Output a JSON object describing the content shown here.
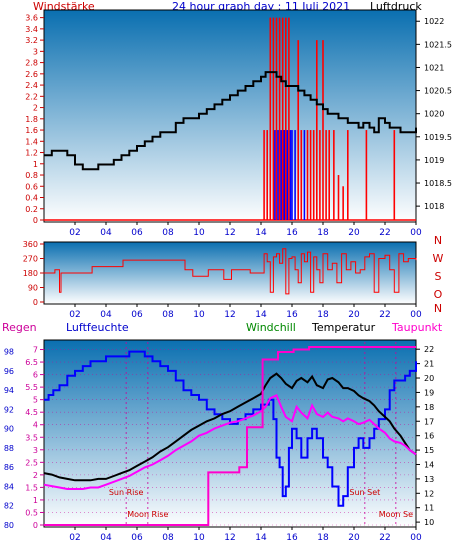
{
  "chart_data": [
    {
      "type": "line",
      "title": "24 hour graph day : 11 Juli 2021",
      "left_label": "Windstärke",
      "right_label": "Luftdruck",
      "x_ticks": [
        "02",
        "04",
        "06",
        "08",
        "10",
        "12",
        "14",
        "16",
        "18",
        "20",
        "22",
        "00"
      ],
      "y_left_ticks": [
        "3.6",
        "3.4",
        "3.2",
        "3",
        "2.8",
        "2.6",
        "2.4",
        "2.2",
        "2",
        "1.8",
        "1.6",
        "1.4",
        "1.2",
        "1",
        "0.8",
        "0.6",
        "0.4",
        "0.2",
        "0"
      ],
      "y_right_ticks": [
        "1022",
        "1021.5",
        "1021",
        "1020.5",
        "1020",
        "1019.5",
        "1019",
        "1018.5",
        "1018"
      ],
      "ylim_left": [
        0,
        3.7
      ],
      "ylim_right": [
        1017.7,
        1022.2
      ],
      "xlim": [
        0,
        24
      ],
      "series": [
        {
          "name": "Luftdruck",
          "color": "#000000",
          "axis": "right",
          "x": [
            0,
            0.5,
            1,
            1.5,
            2,
            2.5,
            3,
            3.5,
            4,
            4.5,
            5,
            5.5,
            6,
            6.5,
            7,
            7.5,
            8,
            8.5,
            9,
            9.5,
            10,
            10.5,
            11,
            11.5,
            12,
            12.5,
            13,
            13.5,
            14,
            14.3,
            14.6,
            15,
            15.3,
            15.6,
            16,
            16.4,
            16.8,
            17.2,
            17.6,
            18,
            18.3,
            18.6,
            19,
            19.3,
            19.6,
            20,
            20.3,
            20.6,
            21,
            21.3,
            21.6,
            22,
            22.3,
            22.6,
            23,
            23.3,
            23.6,
            24
          ],
          "values": [
            1019.1,
            1019.2,
            1019.2,
            1019.1,
            1018.9,
            1018.8,
            1018.8,
            1018.9,
            1018.9,
            1019.0,
            1019.1,
            1019.2,
            1019.3,
            1019.4,
            1019.5,
            1019.6,
            1019.6,
            1019.8,
            1019.9,
            1019.9,
            1020.0,
            1020.1,
            1020.2,
            1020.3,
            1020.4,
            1020.5,
            1020.6,
            1020.7,
            1020.8,
            1020.9,
            1020.9,
            1020.8,
            1020.7,
            1020.6,
            1020.6,
            1020.5,
            1020.4,
            1020.3,
            1020.2,
            1020.1,
            1020.0,
            1020.0,
            1019.9,
            1019.9,
            1019.8,
            1019.8,
            1019.7,
            1019.8,
            1019.7,
            1019.6,
            1019.9,
            1019.8,
            1019.7,
            1019.7,
            1019.6,
            1019.6,
            1019.6,
            1019.7
          ]
        }
      ],
      "wind_bars": [
        {
          "x": 14.2,
          "v": 1.6,
          "color": "#ff0000"
        },
        {
          "x": 14.4,
          "v": 1.6,
          "color": "#ff0000"
        },
        {
          "x": 14.6,
          "v": 3.6,
          "color": "#ff0000"
        },
        {
          "x": 14.8,
          "v": 3.6,
          "color": "#ff0000"
        },
        {
          "x": 14.9,
          "v": 1.6,
          "color": "#0000ff"
        },
        {
          "x": 15.0,
          "v": 3.6,
          "color": "#ff0000"
        },
        {
          "x": 15.1,
          "v": 1.6,
          "color": "#0000ff"
        },
        {
          "x": 15.2,
          "v": 3.6,
          "color": "#ff0000"
        },
        {
          "x": 15.3,
          "v": 1.6,
          "color": "#0000ff"
        },
        {
          "x": 15.4,
          "v": 3.6,
          "color": "#ff0000"
        },
        {
          "x": 15.5,
          "v": 1.6,
          "color": "#0000ff"
        },
        {
          "x": 15.6,
          "v": 3.6,
          "color": "#ff0000"
        },
        {
          "x": 15.7,
          "v": 1.6,
          "color": "#0000ff"
        },
        {
          "x": 15.8,
          "v": 3.6,
          "color": "#ff0000"
        },
        {
          "x": 15.9,
          "v": 1.6,
          "color": "#0000ff"
        },
        {
          "x": 16.0,
          "v": 1.6,
          "color": "#0000ff"
        },
        {
          "x": 16.2,
          "v": 1.6,
          "color": "#0000ff"
        },
        {
          "x": 16.4,
          "v": 3.2,
          "color": "#ff0000"
        },
        {
          "x": 16.6,
          "v": 1.6,
          "color": "#ff0000"
        },
        {
          "x": 16.8,
          "v": 1.6,
          "color": "#0000ff"
        },
        {
          "x": 17.0,
          "v": 1.6,
          "color": "#ff0000"
        },
        {
          "x": 17.2,
          "v": 1.6,
          "color": "#ff0000"
        },
        {
          "x": 17.4,
          "v": 1.6,
          "color": "#ff0000"
        },
        {
          "x": 17.6,
          "v": 3.2,
          "color": "#ff0000"
        },
        {
          "x": 17.8,
          "v": 1.6,
          "color": "#ff0000"
        },
        {
          "x": 18.0,
          "v": 3.2,
          "color": "#ff0000"
        },
        {
          "x": 18.2,
          "v": 1.6,
          "color": "#ff0000"
        },
        {
          "x": 18.4,
          "v": 1.6,
          "color": "#ff0000"
        },
        {
          "x": 18.7,
          "v": 1.6,
          "color": "#ff0000"
        },
        {
          "x": 19.0,
          "v": 0.8,
          "color": "#ff0000"
        },
        {
          "x": 19.3,
          "v": 0.6,
          "color": "#ff0000"
        },
        {
          "x": 19.6,
          "v": 1.6,
          "color": "#ff0000"
        },
        {
          "x": 20.8,
          "v": 1.6,
          "color": "#ff0000"
        },
        {
          "x": 22.6,
          "v": 1.6,
          "color": "#ff0000"
        }
      ]
    },
    {
      "type": "line",
      "title": "",
      "x_ticks": [
        "02",
        "04",
        "06",
        "08",
        "10",
        "12",
        "14",
        "16",
        "18",
        "20",
        "22",
        "00"
      ],
      "y_left_ticks": [
        "360",
        "270",
        "180",
        "90",
        "0"
      ],
      "right_letters": [
        "N",
        "W",
        "S",
        "O",
        "N"
      ],
      "ylim": [
        0,
        360
      ],
      "xlim": [
        0,
        24
      ],
      "series": [
        {
          "name": "Windrichtung",
          "color": "#ff0000",
          "x": [
            0,
            0.6,
            0.7,
            1.0,
            1.1,
            3.0,
            3.1,
            5.0,
            5.1,
            9.0,
            9.1,
            9.5,
            9.6,
            10.5,
            10.6,
            11.5,
            11.6,
            12.0,
            12.1,
            13.2,
            13.3,
            14.0,
            14.2,
            14.4,
            14.6,
            14.8,
            15.0,
            15.2,
            15.4,
            15.6,
            15.8,
            16.0,
            16.2,
            16.4,
            16.6,
            16.8,
            17.0,
            17.2,
            17.4,
            17.6,
            17.8,
            18.0,
            18.3,
            18.6,
            18.9,
            19.2,
            19.5,
            19.8,
            20.1,
            20.4,
            20.7,
            21.0,
            21.3,
            21.6,
            22.0,
            22.3,
            22.6,
            22.9,
            23.2,
            23.5,
            24
          ],
          "values": [
            180,
            180,
            200,
            60,
            180,
            180,
            220,
            220,
            260,
            260,
            200,
            200,
            160,
            160,
            200,
            200,
            140,
            140,
            200,
            200,
            180,
            180,
            300,
            250,
            60,
            280,
            300,
            240,
            330,
            50,
            270,
            280,
            200,
            120,
            300,
            250,
            310,
            60,
            280,
            200,
            120,
            300,
            200,
            240,
            120,
            300,
            200,
            250,
            180,
            200,
            280,
            300,
            60,
            270,
            290,
            200,
            60,
            300,
            250,
            270,
            260
          ]
        }
      ]
    },
    {
      "type": "line",
      "title": "",
      "header_labels": [
        "Regen",
        "Luftfeuchte",
        "Windchill",
        "Temperatur",
        "Taupunkt"
      ],
      "x_ticks": [
        "02",
        "04",
        "06",
        "08",
        "10",
        "12",
        "14",
        "16",
        "18",
        "20",
        "22",
        "00"
      ],
      "y_rain_ticks": [
        "7",
        "6.5",
        "6",
        "5.5",
        "5",
        "4.5",
        "4",
        "3.5",
        "3",
        "2.5",
        "2",
        "1.5",
        "1",
        "0.5",
        "0"
      ],
      "y_humidity_ticks": [
        "98",
        "96",
        "94",
        "92",
        "90",
        "88",
        "86",
        "84",
        "82",
        "80"
      ],
      "y_temp_ticks": [
        "22",
        "21",
        "20",
        "19",
        "18",
        "17",
        "16",
        "15",
        "14",
        "13",
        "12",
        "11",
        "10"
      ],
      "ylim_rain": [
        0,
        7.3
      ],
      "ylim_humidity": [
        80,
        99
      ],
      "ylim_temp": [
        9.8,
        22.5
      ],
      "xlim": [
        0,
        24
      ],
      "annotations": [
        "Sun Rise",
        "Moon Rise",
        "Sun Set",
        "Moon Se"
      ],
      "series": [
        {
          "name": "Luftfeuchte",
          "color": "#0000ff",
          "axis": "humidity",
          "x": [
            0,
            0.3,
            0.6,
            1.0,
            1.5,
            2.0,
            2.5,
            3.0,
            3.5,
            4.0,
            4.5,
            5.0,
            5.5,
            6.0,
            6.5,
            7.0,
            7.5,
            8.0,
            8.5,
            9.0,
            9.5,
            10.0,
            10.5,
            11.0,
            11.5,
            12.0,
            12.5,
            13.0,
            13.5,
            14.0,
            14.5,
            14.8,
            15.0,
            15.2,
            15.4,
            15.6,
            15.8,
            16.0,
            16.3,
            16.6,
            17.0,
            17.3,
            17.6,
            18.0,
            18.3,
            18.6,
            19.0,
            19.3,
            19.6,
            20.0,
            20.3,
            20.6,
            21.0,
            21.3,
            21.6,
            22.0,
            22.3,
            22.6,
            23.0,
            23.3,
            23.6,
            24
          ],
          "values": [
            93,
            93.5,
            94,
            94.5,
            95.5,
            96,
            96.5,
            97,
            97,
            97.5,
            97.5,
            97.5,
            98,
            98,
            97.5,
            97,
            96.5,
            96,
            95,
            94,
            93.5,
            93,
            92,
            91.5,
            91,
            90.5,
            91,
            91.5,
            92,
            92.5,
            93,
            91,
            87,
            86,
            83,
            84,
            88,
            90,
            89,
            87,
            89,
            90,
            89,
            87,
            86,
            84,
            82,
            83,
            86,
            88,
            89,
            88,
            89,
            90,
            91,
            92,
            94,
            95,
            95,
            95.5,
            96,
            97
          ]
        },
        {
          "name": "Temperatur",
          "color": "#000000",
          "axis": "temp",
          "x": [
            0,
            0.5,
            1.0,
            1.5,
            2.0,
            2.5,
            3.0,
            3.5,
            4.0,
            4.5,
            5.0,
            5.5,
            6.0,
            6.5,
            7.0,
            7.5,
            8.0,
            8.5,
            9.0,
            9.5,
            10.0,
            10.5,
            11.0,
            11.5,
            12.0,
            12.5,
            13.0,
            13.5,
            14.0,
            14.3,
            14.6,
            15.0,
            15.3,
            15.6,
            16.0,
            16.3,
            16.6,
            17.0,
            17.3,
            17.6,
            18.0,
            18.3,
            18.6,
            19.0,
            19.3,
            19.6,
            20.0,
            20.3,
            20.6,
            21.0,
            21.3,
            21.6,
            22.0,
            22.3,
            22.6,
            23.0,
            23.3,
            23.6,
            24
          ],
          "values": [
            13.4,
            13.3,
            13.1,
            13.0,
            12.9,
            12.9,
            12.9,
            13.0,
            13.0,
            13.2,
            13.4,
            13.6,
            13.9,
            14.2,
            14.5,
            14.9,
            15.2,
            15.6,
            16.0,
            16.4,
            16.7,
            17.0,
            17.2,
            17.5,
            17.7,
            18.0,
            18.3,
            18.6,
            18.9,
            19.5,
            20.0,
            20.3,
            20.0,
            19.6,
            19.3,
            19.8,
            20.0,
            19.7,
            20.1,
            19.5,
            19.3,
            19.9,
            20.0,
            19.7,
            19.3,
            19.3,
            19.1,
            18.8,
            18.6,
            18.4,
            18.1,
            17.7,
            17.3,
            17.0,
            16.5,
            16.0,
            15.5,
            15.0,
            14.7
          ]
        },
        {
          "name": "Taupunkt",
          "color": "#ff00ff",
          "axis": "temp",
          "x": [
            0,
            0.5,
            1.0,
            1.5,
            2.0,
            2.5,
            3.0,
            3.5,
            4.0,
            4.5,
            5.0,
            5.5,
            6.0,
            6.5,
            7.0,
            7.5,
            8.0,
            8.5,
            9.0,
            9.5,
            10.0,
            10.5,
            11.0,
            11.5,
            12.0,
            12.5,
            13.0,
            13.5,
            14.0,
            14.3,
            14.6,
            15.0,
            15.3,
            15.6,
            16.0,
            16.3,
            16.6,
            17.0,
            17.3,
            17.6,
            18.0,
            18.3,
            18.6,
            19.0,
            19.3,
            19.6,
            20.0,
            20.3,
            20.6,
            21.0,
            21.3,
            21.6,
            22.0,
            22.3,
            22.6,
            23.0,
            23.3,
            23.6,
            24
          ],
          "values": [
            12.6,
            12.5,
            12.4,
            12.3,
            12.3,
            12.3,
            12.4,
            12.4,
            12.6,
            12.8,
            13.0,
            13.2,
            13.5,
            13.8,
            14.0,
            14.3,
            14.6,
            15.0,
            15.3,
            15.6,
            16.0,
            16.2,
            16.5,
            16.7,
            16.9,
            17.0,
            17.2,
            17.4,
            17.7,
            18.0,
            18.6,
            18.8,
            18.0,
            17.3,
            17.0,
            18.0,
            17.6,
            17.2,
            18.1,
            17.5,
            17.3,
            17.6,
            17.3,
            17.2,
            17.0,
            17.2,
            17.0,
            16.8,
            16.9,
            17.1,
            16.8,
            16.5,
            16.2,
            15.8,
            15.6,
            15.5,
            15.3,
            15.0,
            14.7
          ]
        },
        {
          "name": "Regen",
          "color": "#ff00cc",
          "axis": "rain",
          "x": [
            0,
            10.5,
            10.6,
            12.5,
            12.6,
            13.0,
            13.1,
            14.0,
            14.1,
            15.0,
            15.1,
            16.0,
            16.1,
            17.0,
            17.1,
            24
          ],
          "values": [
            0,
            0,
            2.1,
            2.1,
            2.3,
            2.3,
            3.9,
            3.9,
            6.6,
            6.6,
            6.9,
            6.9,
            7.0,
            7.0,
            7.1,
            7.1
          ]
        }
      ]
    }
  ],
  "colors": {
    "bg_top": "#0a6fb0",
    "bg_bottom": "#ffffff",
    "title": "#0000cc",
    "axis_red": "#cc0000",
    "axis_black": "#000000",
    "axis_blue": "#0000cc",
    "axis_magenta": "#cc0099",
    "windchill_label": "#008800"
  }
}
